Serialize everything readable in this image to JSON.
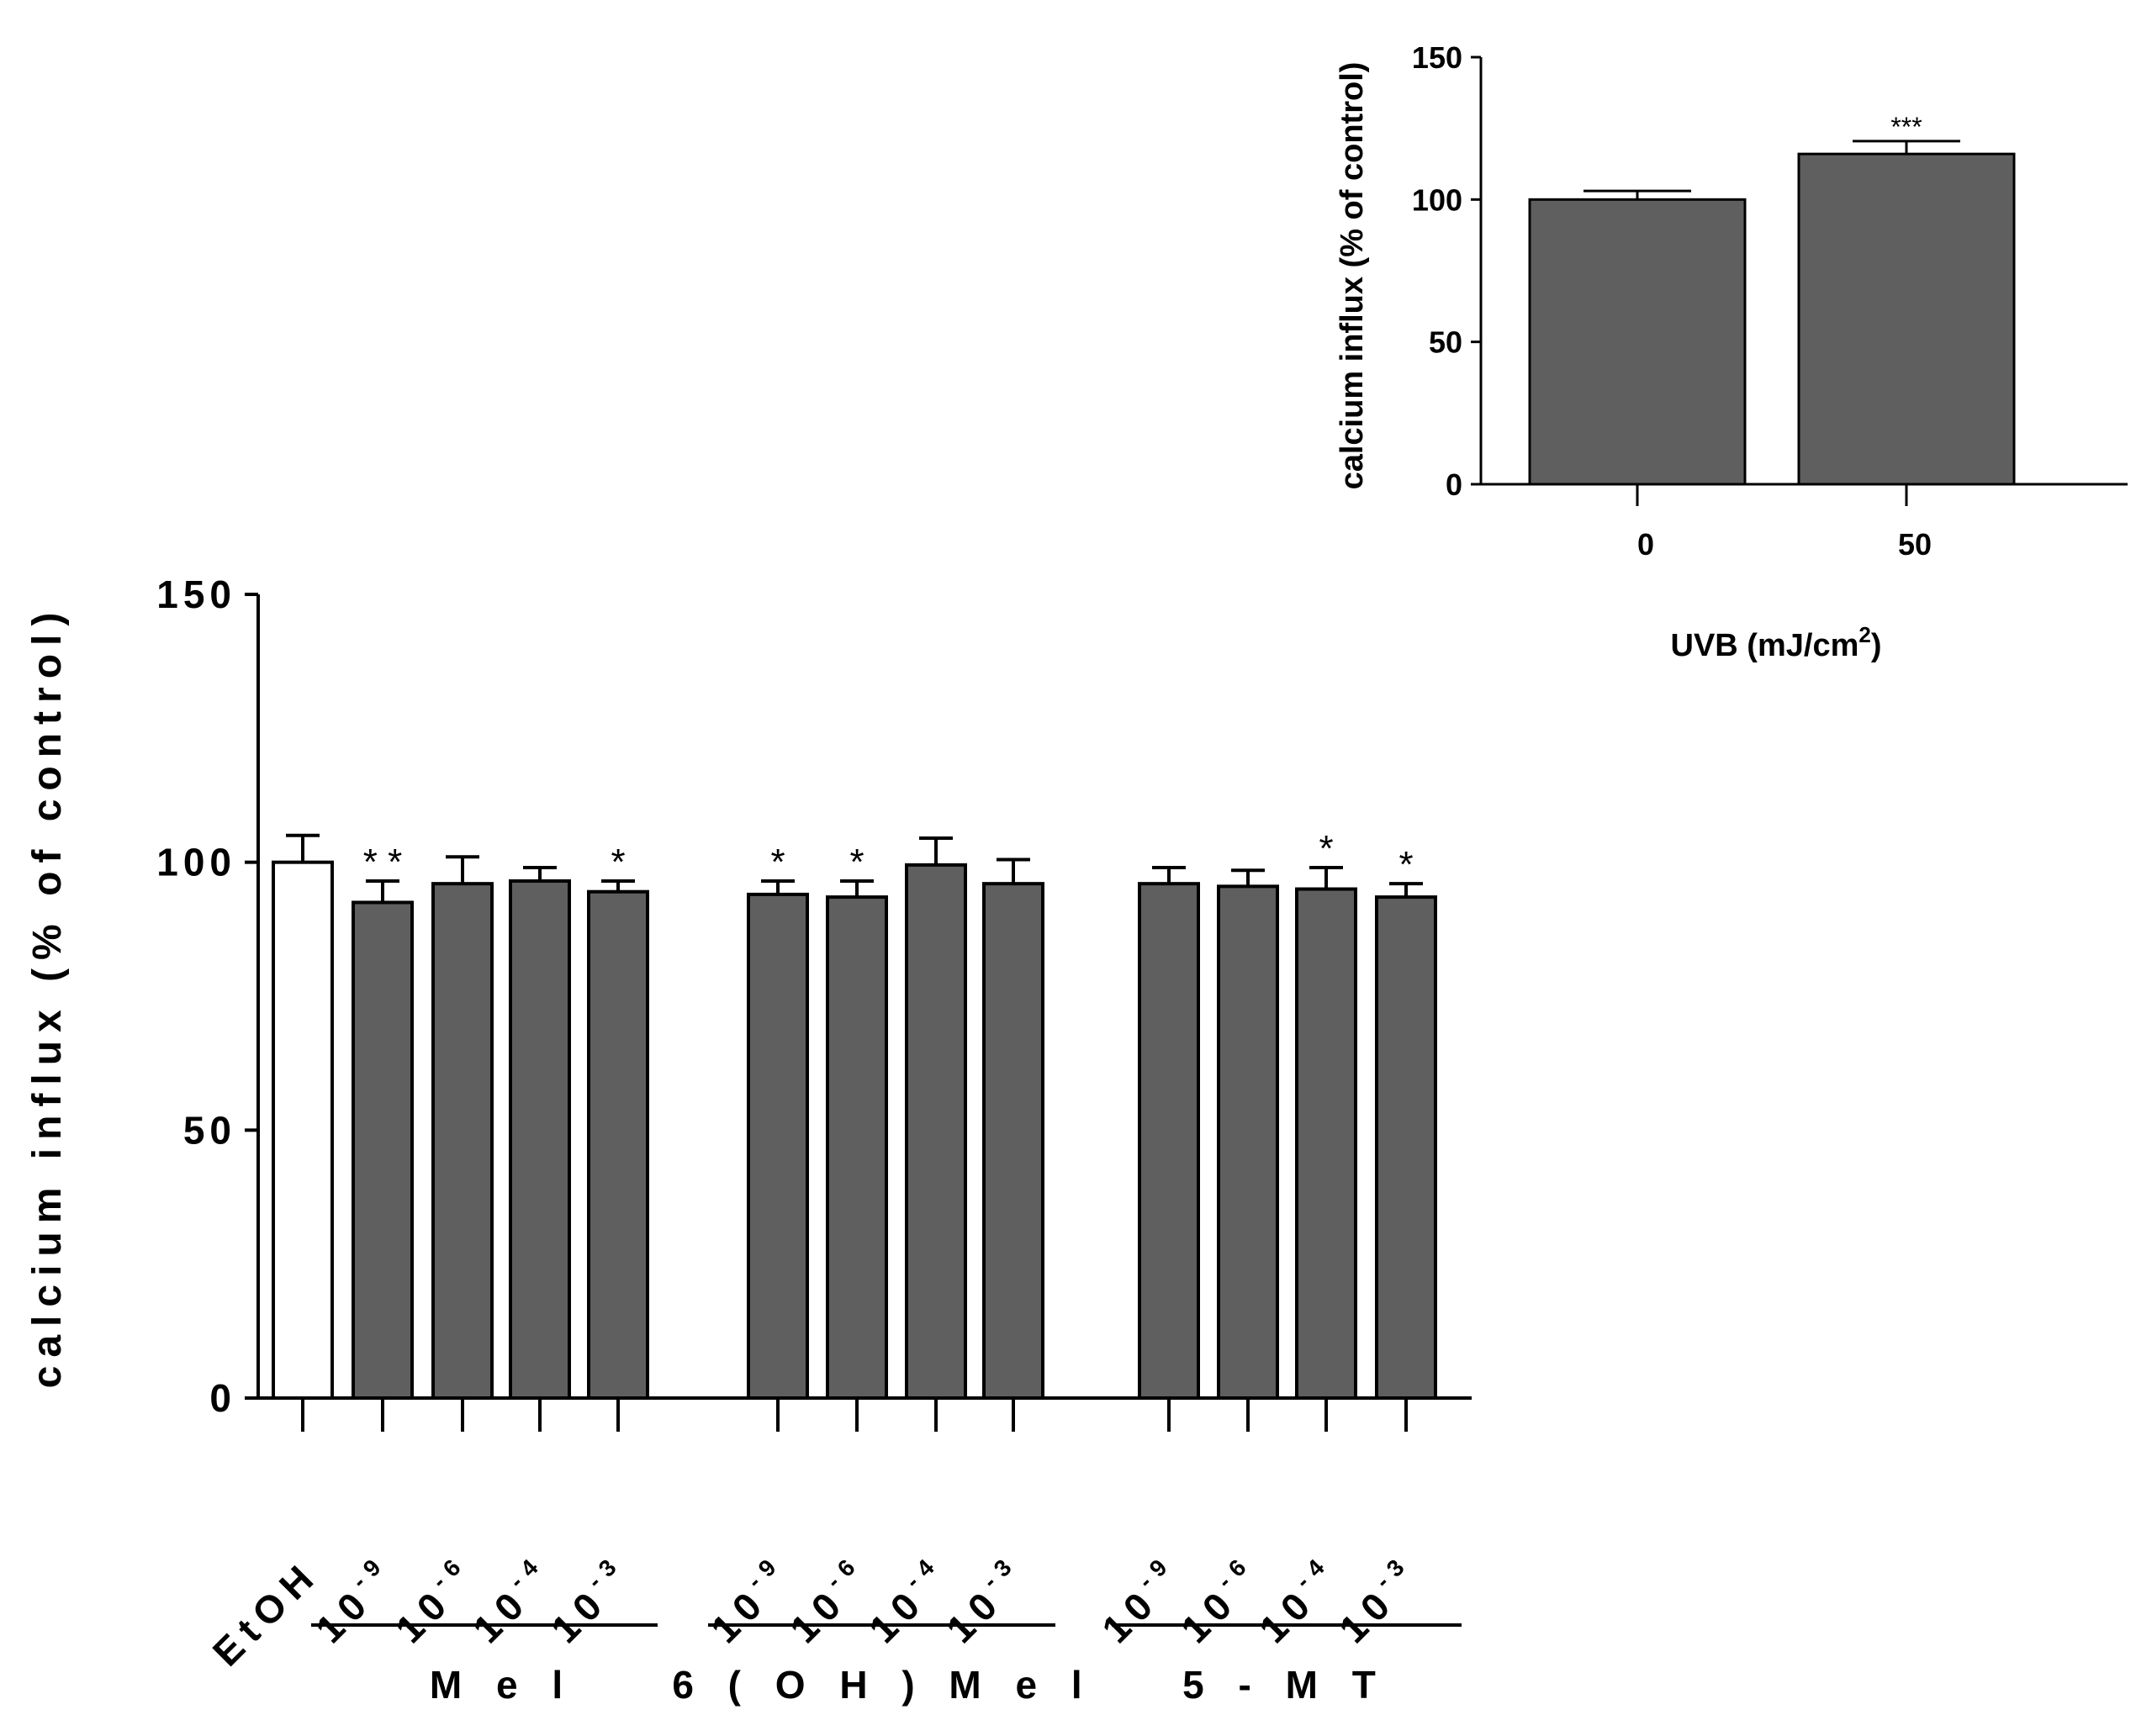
{
  "chart_data": [
    {
      "type": "bar",
      "ylabel": "calcium influx (% of control)",
      "ylim": [
        0,
        150
      ],
      "yticks": [
        0,
        50,
        100,
        150
      ],
      "bar_colors": {
        "control": "#ffffff",
        "treatment": "#5f5f5f"
      },
      "categories": [
        {
          "base": "EtOH",
          "exp": "",
          "group": "",
          "value": 100,
          "error": 5,
          "sig": "",
          "fill": "control"
        },
        {
          "base": "10",
          "exp": "-9",
          "group": "Mel",
          "value": 92.5,
          "error": 4,
          "sig": "* *",
          "fill": "treatment"
        },
        {
          "base": "10",
          "exp": "-6",
          "group": "Mel",
          "value": 96,
          "error": 5,
          "sig": "",
          "fill": "treatment"
        },
        {
          "base": "10",
          "exp": "-4",
          "group": "Mel",
          "value": 96.5,
          "error": 2.5,
          "sig": "",
          "fill": "treatment"
        },
        {
          "base": "10",
          "exp": "-3",
          "group": "Mel",
          "value": 94.5,
          "error": 2,
          "sig": "*",
          "fill": "treatment"
        },
        {
          "base": "10",
          "exp": "-9",
          "group": "6(OH)Mel",
          "value": 94,
          "error": 2.5,
          "sig": "*",
          "fill": "treatment"
        },
        {
          "base": "10",
          "exp": "-6",
          "group": "6(OH)Mel",
          "value": 93.5,
          "error": 3,
          "sig": "*",
          "fill": "treatment"
        },
        {
          "base": "10",
          "exp": "-4",
          "group": "6(OH)Mel",
          "value": 99.5,
          "error": 5,
          "sig": "",
          "fill": "treatment"
        },
        {
          "base": "10",
          "exp": "-3",
          "group": "6(OH)Mel",
          "value": 96,
          "error": 4.5,
          "sig": "",
          "fill": "treatment"
        },
        {
          "base": "10",
          "exp": "-9",
          "group": "5-MT",
          "value": 96,
          "error": 3,
          "sig": "",
          "fill": "treatment"
        },
        {
          "base": "10",
          "exp": "-6",
          "group": "5-MT",
          "value": 95.5,
          "error": 3,
          "sig": "",
          "fill": "treatment"
        },
        {
          "base": "10",
          "exp": "-4",
          "group": "5-MT",
          "value": 95,
          "error": 4,
          "sig": "*",
          "fill": "treatment"
        },
        {
          "base": "10",
          "exp": "-3",
          "group": "5-MT",
          "value": 93.5,
          "error": 2.5,
          "sig": "*",
          "fill": "treatment"
        }
      ],
      "groups": [
        {
          "label": "M e l"
        },
        {
          "label": "6 ( O H ) M e l"
        },
        {
          "label": "5 - M T"
        }
      ]
    },
    {
      "type": "bar",
      "ylabel": "calcium influx (% of control)",
      "xlabel_main": "UVB (mJ/cm",
      "xlabel_sup": "2",
      "xlabel_end": ")",
      "ylim": [
        0,
        150
      ],
      "yticks": [
        0,
        50,
        100,
        150
      ],
      "categories": [
        "0",
        "50"
      ],
      "values": [
        100,
        116
      ],
      "errors": [
        3,
        4.5
      ],
      "sig": [
        "",
        "***"
      ],
      "bar_color": "#5f5f5f"
    }
  ]
}
